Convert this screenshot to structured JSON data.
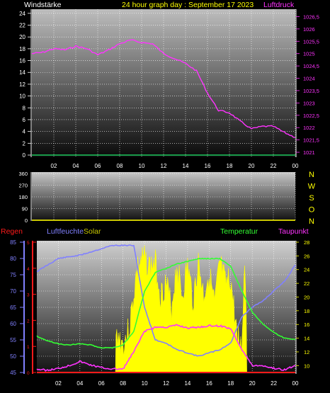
{
  "header": {
    "left": "Windstärke",
    "title": "24 hour graph day : September 17 2023",
    "right": "Luftdruck"
  },
  "colors": {
    "grid": "#ffffff",
    "wind_axis": "#1a9a4a",
    "pressure": "#ff33ff",
    "dir_axis": "#c9c600",
    "rain": "#ff1a1a",
    "humidity": "#8080ff",
    "solar": "#ffff00",
    "temperature": "#33ff33",
    "dewpoint": "#ff33ff",
    "label_white": "#ffffff",
    "letters_yellow": "#ffff00"
  },
  "panel3_header": {
    "rain": "Regen",
    "humidity": "Luftfeuchte",
    "solar": "Solar",
    "temperature": "Temperatur",
    "dewpoint": "Taupunkt"
  },
  "compass": [
    "N",
    "W",
    "S",
    "O",
    "N"
  ],
  "chart_data": [
    {
      "type": "line",
      "title": "24 hour graph day : September 17 2023",
      "x_ticks": [
        "02",
        "04",
        "06",
        "08",
        "10",
        "12",
        "14",
        "16",
        "18",
        "20",
        "22",
        "00"
      ],
      "y_left": {
        "label": "Windstärke",
        "ticks": [
          0,
          2,
          4,
          6,
          8,
          10,
          12,
          14,
          16,
          18,
          20,
          22,
          24
        ],
        "range": [
          0,
          25
        ]
      },
      "y_right": {
        "label": "Luftdruck",
        "ticks": [
          "1021",
          "1021,5",
          "1022",
          "1022,5",
          "1023",
          "1023,5",
          "1024",
          "1024,5",
          "1025",
          "1025,5",
          "1026",
          "1026,5"
        ],
        "range": [
          1020.8,
          1026.8
        ]
      },
      "series": [
        {
          "name": "Luftdruck",
          "x_hours": [
            0,
            1,
            2,
            3,
            4,
            5,
            6,
            7,
            8,
            9,
            10,
            11,
            12,
            13,
            14,
            15,
            16,
            17,
            18,
            19,
            20,
            21,
            22,
            23,
            24
          ],
          "values": [
            1025.0,
            1025.05,
            1025.2,
            1025.15,
            1025.3,
            1025.2,
            1024.95,
            1025.15,
            1025.4,
            1025.55,
            1025.45,
            1025.4,
            1025.0,
            1024.8,
            1024.6,
            1024.3,
            1023.4,
            1022.7,
            1022.6,
            1022.25,
            1021.95,
            1022.05,
            1022.05,
            1021.8,
            1021.6
          ]
        },
        {
          "name": "Windstärke",
          "x_hours": [
            0,
            24
          ],
          "values": [
            0,
            0
          ]
        }
      ]
    },
    {
      "type": "line",
      "x_ticks": [
        "02",
        "04",
        "06",
        "08",
        "10",
        "12",
        "14",
        "16",
        "18",
        "20",
        "22",
        "00"
      ],
      "y_left": {
        "ticks": [
          0,
          90,
          180,
          270,
          360
        ],
        "range": [
          0,
          360
        ]
      },
      "series": [
        {
          "name": "Windrichtung",
          "x_hours": [
            0,
            24
          ],
          "values": [
            0,
            0
          ]
        }
      ]
    },
    {
      "type": "area",
      "x_ticks": [
        "02",
        "04",
        "06",
        "08",
        "10",
        "12",
        "14",
        "16",
        "18",
        "20",
        "22",
        "00"
      ],
      "y_left_rain": {
        "label": "Regen",
        "ticks": [
          0,
          1,
          2,
          3,
          4,
          5
        ],
        "range": [
          0,
          5
        ]
      },
      "y_left_humidity": {
        "label": "Luftfeuchte",
        "ticks": [
          45,
          50,
          55,
          60,
          65,
          70,
          75,
          80,
          85
        ],
        "range": [
          45,
          85
        ]
      },
      "y_right": {
        "label": "Temperatur",
        "ticks": [
          10,
          12,
          14,
          16,
          18,
          20,
          22,
          24,
          26,
          28
        ],
        "range": [
          9,
          28
        ]
      },
      "series": [
        {
          "name": "Luftfeuchte",
          "x_hours": [
            0,
            1,
            2,
            3,
            4,
            5,
            6,
            7,
            8,
            9,
            10,
            11,
            12,
            13,
            14,
            15,
            16,
            17,
            18,
            19,
            20,
            21,
            22,
            23,
            24
          ],
          "values": [
            76,
            78,
            80,
            80.5,
            81,
            82,
            83,
            84,
            84,
            84,
            65,
            55,
            54,
            52,
            51,
            50,
            51,
            52,
            54,
            62,
            65,
            67,
            70,
            73,
            78
          ]
        },
        {
          "name": "Temperatur",
          "x_hours": [
            0,
            1,
            2,
            3,
            4,
            5,
            6,
            7,
            8,
            9,
            10,
            11,
            12,
            13,
            14,
            15,
            16,
            17,
            18,
            19,
            20,
            21,
            22,
            23,
            24
          ],
          "values": [
            14.3,
            13.6,
            13.2,
            13.0,
            13.2,
            13.0,
            12.6,
            12.6,
            13.0,
            15.0,
            20.8,
            23.6,
            24.2,
            24.8,
            25.2,
            25.6,
            25.6,
            25.6,
            24.5,
            21.0,
            17.8,
            16.0,
            14.8,
            14.0,
            13.8
          ]
        },
        {
          "name": "Taupunkt",
          "x_hours": [
            0,
            1,
            2,
            3,
            4,
            5,
            6,
            7,
            8,
            9,
            10,
            11,
            12,
            13,
            14,
            15,
            16,
            17,
            18,
            19,
            20,
            21,
            22,
            23,
            24
          ],
          "values": [
            9.5,
            9.3,
            9.6,
            10.0,
            10.6,
            10.1,
            9.7,
            9.5,
            9.5,
            12.0,
            15.0,
            15.6,
            15.6,
            15.9,
            15.5,
            15.6,
            15.8,
            15.8,
            15.4,
            12.5,
            10.0,
            10.0,
            9.6,
            9.4,
            10.0
          ]
        },
        {
          "name": "Solar",
          "x_hours": [
            0,
            7.3,
            7.35,
            7.5,
            8,
            8.6,
            9.0,
            9.3,
            9.6,
            10,
            10.5,
            11,
            11.5,
            12,
            12.5,
            13,
            13.5,
            14,
            14.5,
            15,
            15.5,
            16,
            16.5,
            17,
            17.5,
            18,
            18.5,
            19,
            19.3,
            19.45,
            19.5,
            24
          ],
          "values": [
            0,
            0,
            36,
            40,
            32,
            45,
            70,
            90,
            95,
            98,
            92,
            95,
            70,
            80,
            60,
            94,
            70,
            93,
            66,
            95,
            70,
            88,
            62,
            95,
            78,
            82,
            45,
            28,
            95,
            60,
            0,
            0
          ]
        },
        {
          "name": "Regen",
          "x_hours": [
            0,
            24
          ],
          "values": [
            0,
            0
          ]
        }
      ]
    }
  ]
}
